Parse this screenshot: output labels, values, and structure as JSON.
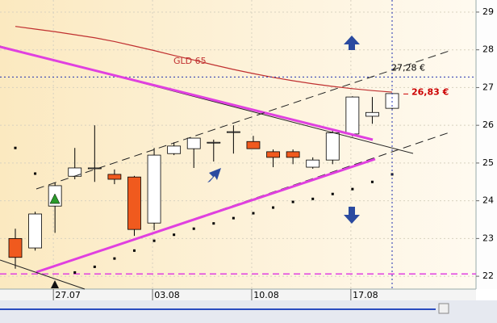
{
  "chart_data": {
    "type": "candlestick",
    "categories": [
      null,
      null,
      "27.07",
      null,
      null,
      null,
      null,
      "03.08",
      null,
      null,
      null,
      null,
      "10.08",
      null,
      null,
      null,
      null,
      "17.08",
      null,
      null
    ],
    "open": [
      23.0,
      22.75,
      23.86,
      24.65,
      24.85,
      24.7,
      24.63,
      23.41,
      25.25,
      25.38,
      25.55,
      25.83,
      25.57,
      25.3,
      25.3,
      24.89,
      25.08,
      25.77,
      26.24,
      26.45
    ],
    "high": [
      23.26,
      23.71,
      24.48,
      25.4,
      26.0,
      24.83,
      24.66,
      25.4,
      25.55,
      25.66,
      25.62,
      26.0,
      25.72,
      25.36,
      25.36,
      25.15,
      25.85,
      26.77,
      26.75,
      26.86
    ],
    "low": [
      22.2,
      22.68,
      23.15,
      24.57,
      24.5,
      24.44,
      23.07,
      23.22,
      25.21,
      24.87,
      25.04,
      25.25,
      25.38,
      24.89,
      24.97,
      24.85,
      24.97,
      25.7,
      26.04,
      26.4
    ],
    "close": [
      22.5,
      23.65,
      24.4,
      24.87,
      24.87,
      24.57,
      23.24,
      25.21,
      25.45,
      25.66,
      25.55,
      25.83,
      25.38,
      25.15,
      25.15,
      25.08,
      25.8,
      26.75,
      26.34,
      26.84
    ],
    "up_color": "#ffffff",
    "down_color": "#f05a1e",
    "series": [
      {
        "name": "GLD 65",
        "color": "#c03030",
        "values": [
          28.62,
          28.55,
          28.48,
          28.4,
          28.32,
          28.22,
          28.1,
          27.98,
          27.85,
          27.73,
          27.6,
          27.48,
          27.37,
          27.27,
          27.18,
          27.1,
          27.03,
          26.97,
          26.92,
          26.88
        ]
      }
    ],
    "dots": {
      "color": "#000000",
      "values": [
        25.4,
        24.72,
        null,
        22.1,
        22.25,
        22.47,
        22.68,
        22.94,
        23.1,
        23.26,
        23.4,
        23.54,
        23.67,
        23.82,
        23.97,
        24.05,
        24.18,
        24.31,
        24.5,
        24.7
      ]
    },
    "price_lines": [
      {
        "value": 27.28,
        "label": "27,28 €",
        "color": "#000000"
      },
      {
        "value": 26.83,
        "label": "26,83 €",
        "color": "#cc0000"
      }
    ],
    "hline": {
      "value": 22.06,
      "color": "#e040e0"
    },
    "ylim": [
      21.66,
      29.32
    ],
    "yticks": [
      22,
      23,
      24,
      25,
      26,
      27,
      28,
      29
    ],
    "grid": true
  }
}
